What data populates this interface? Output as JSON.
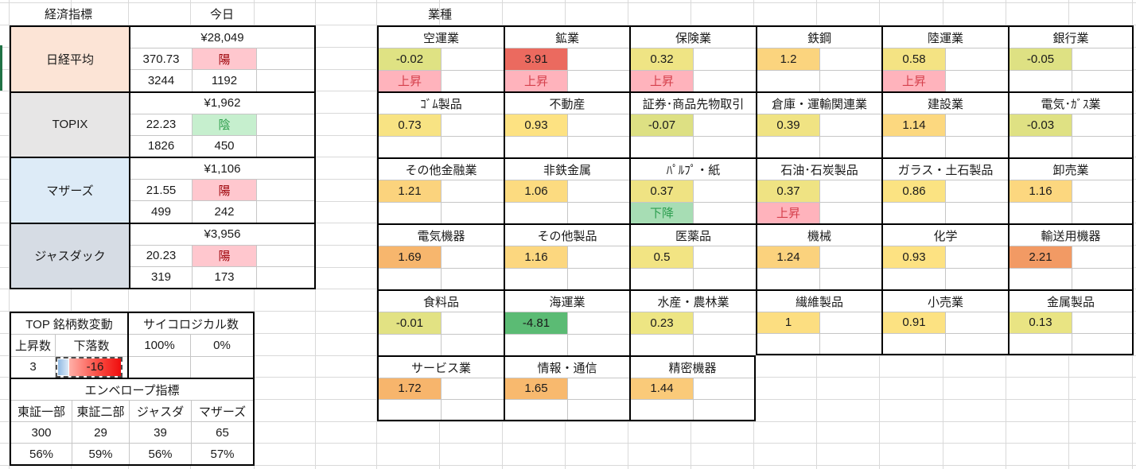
{
  "header": {
    "economic": "経済指標",
    "today": "今日"
  },
  "left_table": {
    "indices": [
      {
        "name": "日経平均",
        "bg": "#FCE4D6",
        "price": "¥28,049",
        "change": "370.73",
        "candle": "陽",
        "candle_bg": "#FFC7CE",
        "candle_color": "#9C0006",
        "sub1": "3244",
        "sub2": "1192"
      },
      {
        "name": "TOPIX",
        "bg": "#E7E6E6",
        "price": "¥1,962",
        "change": "22.23",
        "candle": "陰",
        "candle_bg": "#C6EFCE",
        "candle_color": "#2E9E4C",
        "sub1": "1826",
        "sub2": "450"
      },
      {
        "name": "マザーズ",
        "bg": "#DDEBF7",
        "price": "¥1,106",
        "change": "21.55",
        "candle": "陽",
        "candle_bg": "#FFC7CE",
        "candle_color": "#9C0006",
        "sub1": "499",
        "sub2": "242"
      },
      {
        "name": "ジャスダック",
        "bg": "#D6DCE4",
        "price": "¥3,956",
        "change": "20.23",
        "candle": "陽",
        "candle_bg": "#FFC7CE",
        "candle_color": "#9C0006",
        "sub1": "319",
        "sub2": "173"
      }
    ]
  },
  "top_table": {
    "title": "TOP 銘柄数変動",
    "up_label": "上昇数",
    "down_label": "下落数",
    "up_value": "3",
    "down_value": "-16"
  },
  "psych_table": {
    "title": "サイコロジカル数",
    "value1": "100%",
    "value2": "0%"
  },
  "envelope_table": {
    "title": "エンベロープ指標",
    "columns": [
      "東証一部",
      "東証二部",
      "ジャスダ",
      "マザーズ"
    ],
    "counts": [
      "300",
      "29",
      "39",
      "65"
    ],
    "percents": [
      "56%",
      "59%",
      "56%",
      "57%"
    ]
  },
  "sectors": {
    "header": "業種",
    "trend_colors": {
      "up_bg": "#FFB3BC",
      "up_text": "#D5404C",
      "down_bg": "#A7DDB4",
      "down_text": "#2E9E50"
    },
    "cells": [
      {
        "r": 0,
        "c": 0,
        "name": "空運業",
        "value": "-0.02",
        "bg": "#DFE283",
        "trend": "上昇",
        "dir": "up"
      },
      {
        "r": 0,
        "c": 1,
        "name": "鉱業",
        "value": "3.91",
        "bg": "#EB6A5F",
        "trend": "上昇",
        "dir": "up"
      },
      {
        "r": 0,
        "c": 2,
        "name": "保険業",
        "value": "0.32",
        "bg": "#EFE484",
        "trend": "上昇",
        "dir": "up"
      },
      {
        "r": 0,
        "c": 3,
        "name": "鉄鋼",
        "value": "1.2",
        "bg": "#FBD47E",
        "trend": "",
        "dir": ""
      },
      {
        "r": 0,
        "c": 4,
        "name": "陸運業",
        "value": "0.58",
        "bg": "#F4E383",
        "trend": "上昇",
        "dir": "up"
      },
      {
        "r": 0,
        "c": 5,
        "name": "銀行業",
        "value": "-0.05",
        "bg": "#DEE183",
        "trend": "",
        "dir": ""
      },
      {
        "r": 1,
        "c": 0,
        "name": "ｺﾞﾑ製品",
        "value": "0.73",
        "bg": "#F8E383",
        "trend": "",
        "dir": ""
      },
      {
        "r": 1,
        "c": 1,
        "name": "不動産",
        "value": "0.93",
        "bg": "#FDE282",
        "trend": "",
        "dir": ""
      },
      {
        "r": 1,
        "c": 2,
        "name": "証券･商品先物取引",
        "value": "-0.07",
        "bg": "#DDE083",
        "trend": "",
        "dir": ""
      },
      {
        "r": 1,
        "c": 3,
        "name": "倉庫・運輸関連業",
        "value": "0.39",
        "bg": "#F0E383",
        "trend": "",
        "dir": ""
      },
      {
        "r": 1,
        "c": 4,
        "name": "建設業",
        "value": "1.14",
        "bg": "#FCD87F",
        "trend": "",
        "dir": ""
      },
      {
        "r": 1,
        "c": 5,
        "name": "電気･ｶﾞｽ業",
        "value": "-0.03",
        "bg": "#DFE183",
        "trend": "",
        "dir": ""
      },
      {
        "r": 2,
        "c": 0,
        "name": "その他金融業",
        "value": "1.21",
        "bg": "#FBD37D",
        "trend": "",
        "dir": ""
      },
      {
        "r": 2,
        "c": 1,
        "name": "非鉄金属",
        "value": "1.06",
        "bg": "#FCDB80",
        "trend": "",
        "dir": ""
      },
      {
        "r": 2,
        "c": 2,
        "name": "ﾊﾟﾙﾌﾟ・紙",
        "value": "0.37",
        "bg": "#EFE383",
        "trend": "下降",
        "dir": "down"
      },
      {
        "r": 2,
        "c": 3,
        "name": "石油･石炭製品",
        "value": "0.37",
        "bg": "#EFE383",
        "trend": "上昇",
        "dir": "up"
      },
      {
        "r": 2,
        "c": 4,
        "name": "ガラス・土石製品",
        "value": "0.86",
        "bg": "#FBE382",
        "trend": "",
        "dir": ""
      },
      {
        "r": 2,
        "c": 5,
        "name": "卸売業",
        "value": "1.16",
        "bg": "#FCD77F",
        "trend": "",
        "dir": ""
      },
      {
        "r": 3,
        "c": 0,
        "name": "電気機器",
        "value": "1.69",
        "bg": "#F7B66D",
        "trend": "",
        "dir": ""
      },
      {
        "r": 3,
        "c": 1,
        "name": "その他製品",
        "value": "1.16",
        "bg": "#FCD77F",
        "trend": "",
        "dir": ""
      },
      {
        "r": 3,
        "c": 2,
        "name": "医薬品",
        "value": "0.5",
        "bg": "#F2E483",
        "trend": "",
        "dir": ""
      },
      {
        "r": 3,
        "c": 3,
        "name": "機械",
        "value": "1.24",
        "bg": "#FBD27D",
        "trend": "",
        "dir": ""
      },
      {
        "r": 3,
        "c": 4,
        "name": "化学",
        "value": "0.93",
        "bg": "#FDE282",
        "trend": "",
        "dir": ""
      },
      {
        "r": 3,
        "c": 5,
        "name": "輸送用機器",
        "value": "2.21",
        "bg": "#F29A64",
        "trend": "",
        "dir": ""
      },
      {
        "r": 4,
        "c": 0,
        "name": "食料品",
        "value": "-0.01",
        "bg": "#E2E283",
        "trend": "",
        "dir": ""
      },
      {
        "r": 4,
        "c": 1,
        "name": "海運業",
        "value": "-4.81",
        "bg": "#5BBB74",
        "trend": "",
        "dir": ""
      },
      {
        "r": 4,
        "c": 2,
        "name": "水産・農林業",
        "value": "0.23",
        "bg": "#EDE583",
        "trend": "",
        "dir": ""
      },
      {
        "r": 4,
        "c": 3,
        "name": "繊維製品",
        "value": "1",
        "bg": "#FCDE81",
        "trend": "",
        "dir": ""
      },
      {
        "r": 4,
        "c": 4,
        "name": "小売業",
        "value": "0.91",
        "bg": "#FCE282",
        "trend": "",
        "dir": ""
      },
      {
        "r": 4,
        "c": 5,
        "name": "金属製品",
        "value": "0.13",
        "bg": "#E9E483",
        "trend": "",
        "dir": ""
      },
      {
        "r": 5,
        "c": 0,
        "name": "サービス業",
        "value": "1.72",
        "bg": "#F7B56C",
        "trend": "",
        "dir": ""
      },
      {
        "r": 5,
        "c": 1,
        "name": "情報・通信",
        "value": "1.65",
        "bg": "#F8B96E",
        "trend": "",
        "dir": ""
      },
      {
        "r": 5,
        "c": 2,
        "name": "精密機器",
        "value": "1.44",
        "bg": "#FACA79",
        "trend": "",
        "dir": ""
      }
    ]
  }
}
